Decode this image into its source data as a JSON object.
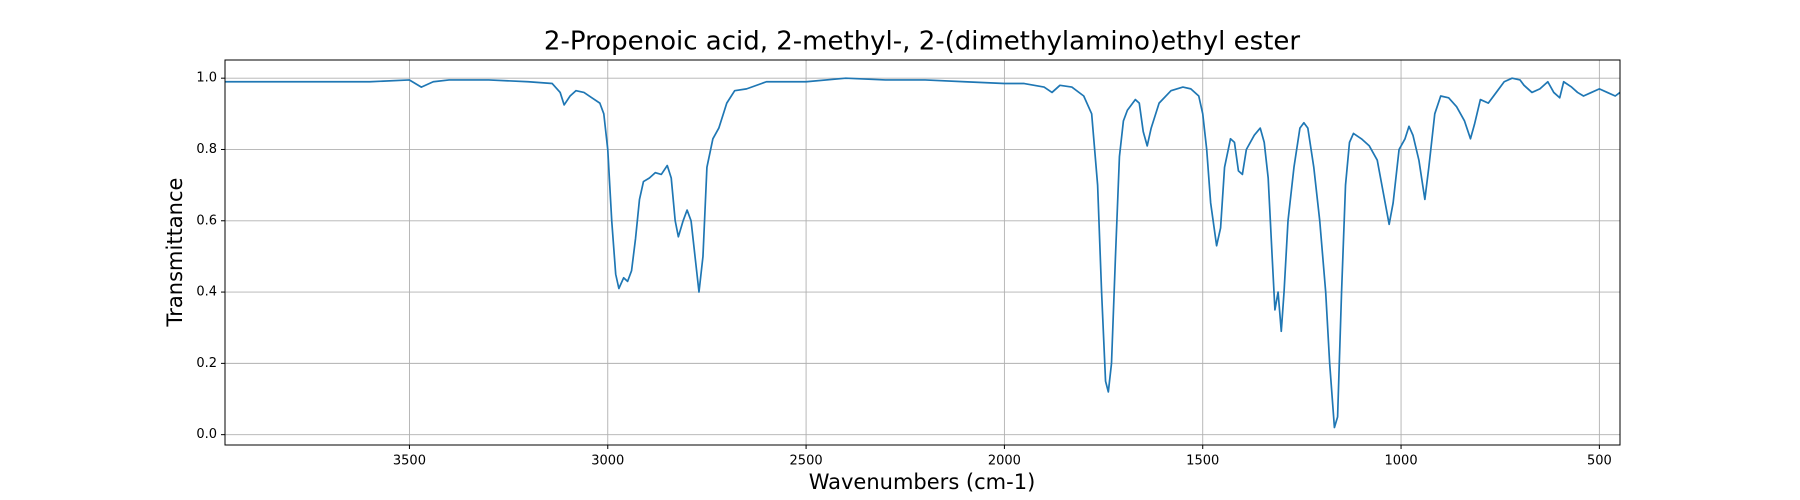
{
  "chart_data": {
    "type": "line",
    "title": "2-Propenoic acid, 2-methyl-, 2-(dimethylamino)ethyl ester",
    "x_label": "Wavenumbers (cm-1)",
    "y_label": "Transmittance",
    "color": "#1f77b4",
    "grid": true,
    "xlim": [
      3965,
      448
    ],
    "ylim": [
      -0.029,
      1.051
    ],
    "xticks": [
      3500,
      3000,
      2500,
      2000,
      1500,
      1000,
      500
    ],
    "yticks": [
      {
        "value": 0,
        "label": "0.0"
      },
      0.2,
      0.4,
      0.6,
      0.8,
      {
        "value": 1,
        "label": "1.0"
      }
    ],
    "x": [
      3965,
      3900,
      3800,
      3700,
      3600,
      3500,
      3470,
      3440,
      3400,
      3300,
      3200,
      3140,
      3120,
      3110,
      3095,
      3080,
      3060,
      3040,
      3020,
      3010,
      3000,
      2990,
      2980,
      2972,
      2960,
      2950,
      2940,
      2930,
      2920,
      2910,
      2895,
      2880,
      2865,
      2850,
      2840,
      2830,
      2822,
      2810,
      2800,
      2790,
      2780,
      2770,
      2760,
      2750,
      2735,
      2720,
      2700,
      2680,
      2650,
      2600,
      2500,
      2400,
      2300,
      2200,
      2100,
      2000,
      1950,
      1900,
      1880,
      1860,
      1830,
      1800,
      1780,
      1765,
      1755,
      1745,
      1738,
      1730,
      1720,
      1710,
      1700,
      1690,
      1670,
      1660,
      1650,
      1640,
      1630,
      1610,
      1580,
      1550,
      1530,
      1510,
      1500,
      1490,
      1480,
      1465,
      1455,
      1445,
      1430,
      1420,
      1410,
      1400,
      1390,
      1370,
      1355,
      1345,
      1335,
      1325,
      1318,
      1310,
      1302,
      1295,
      1285,
      1270,
      1255,
      1245,
      1235,
      1220,
      1205,
      1190,
      1180,
      1168,
      1160,
      1150,
      1140,
      1130,
      1120,
      1100,
      1080,
      1060,
      1045,
      1030,
      1020,
      1005,
      990,
      980,
      970,
      955,
      940,
      930,
      915,
      900,
      880,
      860,
      840,
      825,
      815,
      800,
      780,
      760,
      740,
      720,
      700,
      690,
      670,
      650,
      630,
      615,
      600,
      590,
      570,
      555,
      540,
      520,
      500,
      480,
      460,
      448
    ],
    "values": [
      0.99,
      0.99,
      0.99,
      0.99,
      0.99,
      0.995,
      0.975,
      0.99,
      0.995,
      0.995,
      0.99,
      0.985,
      0.96,
      0.925,
      0.95,
      0.965,
      0.96,
      0.945,
      0.93,
      0.9,
      0.8,
      0.6,
      0.45,
      0.41,
      0.44,
      0.43,
      0.46,
      0.55,
      0.66,
      0.71,
      0.72,
      0.735,
      0.73,
      0.755,
      0.72,
      0.6,
      0.555,
      0.6,
      0.63,
      0.6,
      0.5,
      0.4,
      0.5,
      0.75,
      0.83,
      0.86,
      0.93,
      0.965,
      0.97,
      0.99,
      0.99,
      1.0,
      0.995,
      0.995,
      0.99,
      0.985,
      0.985,
      0.975,
      0.96,
      0.98,
      0.975,
      0.95,
      0.9,
      0.7,
      0.4,
      0.15,
      0.12,
      0.2,
      0.5,
      0.78,
      0.88,
      0.91,
      0.94,
      0.93,
      0.85,
      0.81,
      0.86,
      0.93,
      0.965,
      0.975,
      0.97,
      0.95,
      0.9,
      0.8,
      0.65,
      0.53,
      0.58,
      0.75,
      0.83,
      0.82,
      0.74,
      0.73,
      0.8,
      0.84,
      0.86,
      0.82,
      0.72,
      0.5,
      0.35,
      0.4,
      0.29,
      0.4,
      0.6,
      0.75,
      0.86,
      0.875,
      0.86,
      0.75,
      0.6,
      0.4,
      0.2,
      0.02,
      0.05,
      0.4,
      0.7,
      0.82,
      0.845,
      0.83,
      0.81,
      0.77,
      0.68,
      0.59,
      0.65,
      0.8,
      0.83,
      0.865,
      0.84,
      0.77,
      0.66,
      0.75,
      0.9,
      0.95,
      0.945,
      0.92,
      0.88,
      0.83,
      0.87,
      0.94,
      0.93,
      0.96,
      0.99,
      1.0,
      0.995,
      0.98,
      0.96,
      0.97,
      0.99,
      0.96,
      0.945,
      0.99,
      0.975,
      0.96,
      0.95,
      0.96,
      0.97,
      0.96,
      0.95,
      0.96
    ]
  }
}
